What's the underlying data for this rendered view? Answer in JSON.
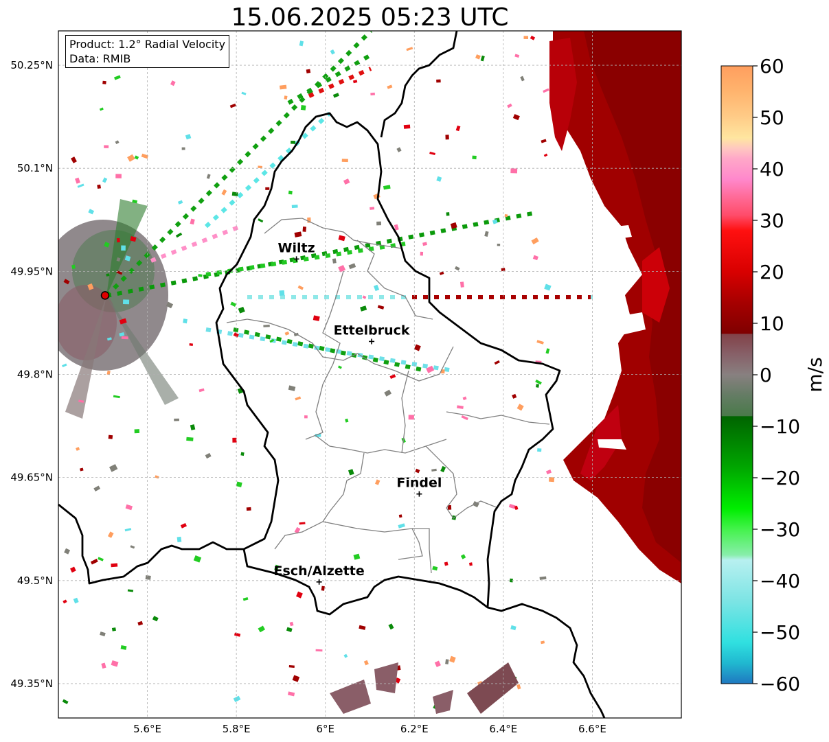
{
  "title": "15.06.2025 05:23 UTC",
  "info": {
    "product": "Product: 1.2° Radial Velocity",
    "data": "Data: RMIB"
  },
  "map": {
    "lon_range": [
      5.4,
      6.8
    ],
    "lat_range": [
      49.3,
      50.3
    ],
    "lon_ticks": [
      {
        "value": 5.6,
        "label": "5.6°E"
      },
      {
        "value": 5.8,
        "label": "5.8°E"
      },
      {
        "value": 6.0,
        "label": "6°E"
      },
      {
        "value": 6.2,
        "label": "6.2°E"
      },
      {
        "value": 6.4,
        "label": "6.4°E"
      },
      {
        "value": 6.6,
        "label": "6.6°E"
      }
    ],
    "lat_ticks": [
      {
        "value": 50.25,
        "label": "50.25°N"
      },
      {
        "value": 50.1,
        "label": "50.1°N"
      },
      {
        "value": 49.95,
        "label": "49.95°N"
      },
      {
        "value": 49.8,
        "label": "49.8°N"
      },
      {
        "value": 49.65,
        "label": "49.65°N"
      },
      {
        "value": 49.5,
        "label": "49.5°N"
      },
      {
        "value": 49.35,
        "label": "49.35°N"
      }
    ],
    "radar_site": {
      "lon": 5.505,
      "lat": 49.915
    },
    "cities": [
      {
        "name": "Wiltz",
        "lon": 5.935,
        "lat": 49.968
      },
      {
        "name": "Ettelbruck",
        "lon": 6.104,
        "lat": 49.848
      },
      {
        "name": "Findel",
        "lon": 6.211,
        "lat": 49.626
      },
      {
        "name": "Esch/Alzette",
        "lon": 5.986,
        "lat": 49.498
      }
    ]
  },
  "colorbar": {
    "label": "m/s",
    "min": -60,
    "max": 60,
    "ticks": [
      {
        "value": 60,
        "label": "60"
      },
      {
        "value": 50,
        "label": "50"
      },
      {
        "value": 40,
        "label": "40"
      },
      {
        "value": 30,
        "label": "30"
      },
      {
        "value": 20,
        "label": "20"
      },
      {
        "value": 10,
        "label": "10"
      },
      {
        "value": 0,
        "label": "0"
      },
      {
        "value": -10,
        "label": "−10"
      },
      {
        "value": -20,
        "label": "−20"
      },
      {
        "value": -30,
        "label": "−30"
      },
      {
        "value": -40,
        "label": "−40"
      },
      {
        "value": -50,
        "label": "−50"
      },
      {
        "value": -60,
        "label": "−60"
      }
    ],
    "stops": [
      {
        "value": 60,
        "color": "#ff9e5e"
      },
      {
        "value": 55,
        "color": "#ffb46e"
      },
      {
        "value": 50,
        "color": "#ffcc88"
      },
      {
        "value": 46,
        "color": "#ffe6a0"
      },
      {
        "value": 44,
        "color": "#ffc8c0"
      },
      {
        "value": 42,
        "color": "#ffa8c8"
      },
      {
        "value": 38,
        "color": "#ff88cc"
      },
      {
        "value": 34,
        "color": "#ff6690"
      },
      {
        "value": 31,
        "color": "#ff4c6a"
      },
      {
        "value": 28,
        "color": "#ff1010"
      },
      {
        "value": 20,
        "color": "#d80000"
      },
      {
        "value": 14,
        "color": "#a60000"
      },
      {
        "value": 8,
        "color": "#7f0000"
      },
      {
        "value": 7.9,
        "color": "#824248"
      },
      {
        "value": 4,
        "color": "#876068"
      },
      {
        "value": 0,
        "color": "#888080"
      },
      {
        "value": -4,
        "color": "#647c64"
      },
      {
        "value": -8,
        "color": "#4a7a4a"
      },
      {
        "value": -8.1,
        "color": "#006400"
      },
      {
        "value": -18,
        "color": "#00a600"
      },
      {
        "value": -26,
        "color": "#00ee00"
      },
      {
        "value": -30,
        "color": "#44f24c"
      },
      {
        "value": -35,
        "color": "#88eeaa"
      },
      {
        "value": -36,
        "color": "#b8f0f0"
      },
      {
        "value": -44,
        "color": "#7ce4e4"
      },
      {
        "value": -52,
        "color": "#30e0e0"
      },
      {
        "value": -56,
        "color": "#20b8d0"
      },
      {
        "value": -60,
        "color": "#1f78c0"
      }
    ]
  },
  "colors": {
    "border": "#000000",
    "canton_border": "#808080",
    "grid": "#b0b0b0",
    "radar_marker": "#e00000"
  }
}
